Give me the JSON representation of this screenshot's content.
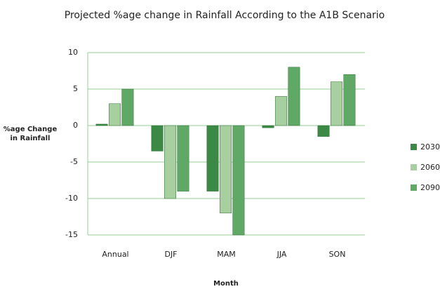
{
  "chart_data": {
    "type": "bar",
    "title": "Projected %age change in Rainfall According to the A1B Scenario",
    "y_label": "%age Change in Rainfall",
    "x_label": "Month",
    "categories": [
      "Annual",
      "DJF",
      "MAM",
      "JJA",
      "SON"
    ],
    "series": [
      {
        "name": "2030",
        "color": "#3a8a45",
        "values": [
          0.2,
          -3.5,
          -9,
          -0.3,
          -1.5
        ]
      },
      {
        "name": "2060",
        "color": "#a8cfa0",
        "values": [
          3,
          -10,
          -12,
          4,
          6
        ]
      },
      {
        "name": "2090",
        "color": "#5fa865",
        "values": [
          5,
          -9,
          -15,
          8,
          7
        ]
      }
    ],
    "ylim": [
      -15,
      10
    ],
    "yticks": [
      -15,
      -10,
      -5,
      0,
      5,
      10
    ],
    "grid": true,
    "legend": "right"
  }
}
